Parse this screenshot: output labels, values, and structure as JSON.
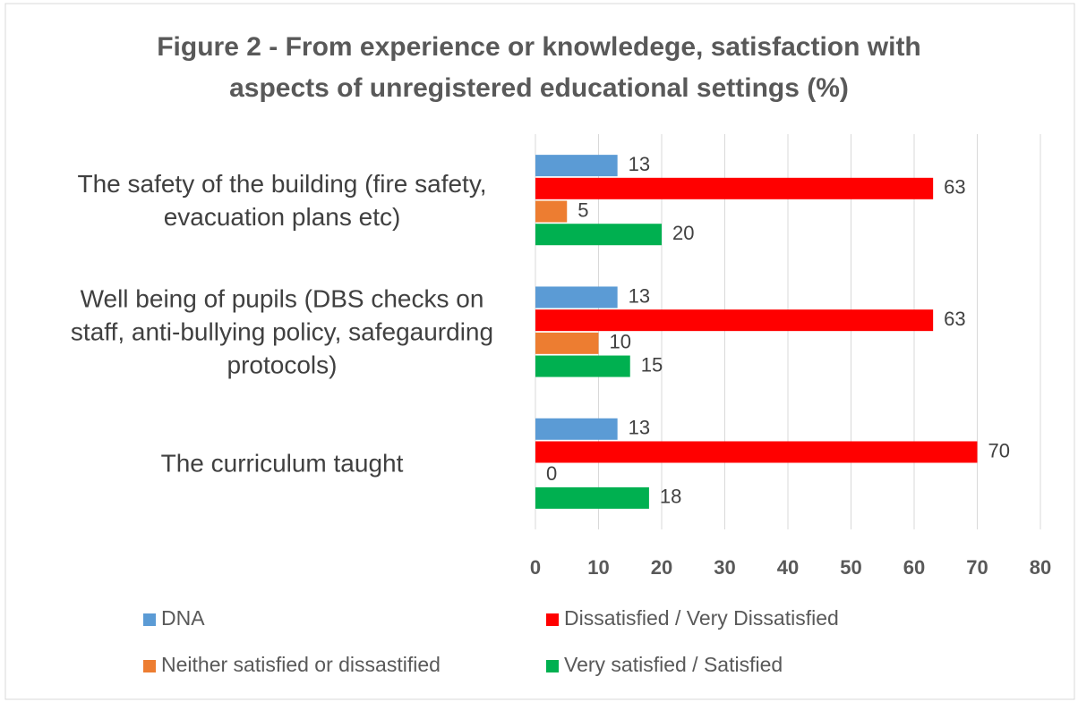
{
  "chart_data": {
    "type": "bar",
    "orientation": "horizontal",
    "title": "Figure 2 - From experience or knowledege, satisfaction with aspects of unregistered educational settings (%)",
    "categories": [
      "The safety of the building (fire safety, evacuation plans etc)",
      "Well being of pupils (DBS checks on staff, anti-bullying policy, safegaurding protocols)",
      "The curriculum taught"
    ],
    "series": [
      {
        "name": "DNA",
        "color": "#5b9bd5",
        "values": [
          13,
          13,
          13
        ]
      },
      {
        "name": "Dissatisfied / Very Dissatisfied",
        "color": "#ff0000",
        "values": [
          63,
          63,
          70
        ]
      },
      {
        "name": "Neither satisfied or dissastified",
        "color": "#ed7d31",
        "values": [
          5,
          10,
          0
        ]
      },
      {
        "name": "Very satisfied / Satisfied",
        "color": "#00b050",
        "values": [
          20,
          15,
          18
        ]
      }
    ],
    "xlim": [
      0,
      80
    ],
    "xticks": [
      0,
      10,
      20,
      30,
      40,
      50,
      60,
      70,
      80
    ],
    "grid": true,
    "legend": "bottom"
  }
}
